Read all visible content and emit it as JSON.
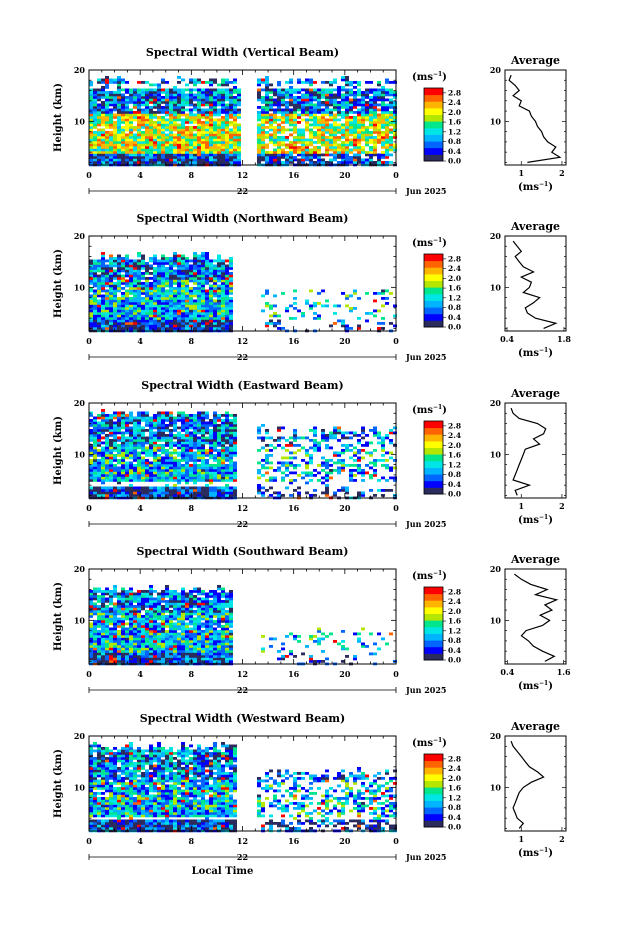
{
  "figure": {
    "xlabel": "Local Time",
    "date_label": "Jun 2025",
    "day_label": "22",
    "ylabel": "Height (km)",
    "colorbar_unit": "(ms",
    "unit_exp": "−1",
    "avg_title": "Average",
    "avg_unit": "(ms",
    "colors": {
      "scale": [
        "#2b2b5e",
        "#0000ff",
        "#0066ff",
        "#00b4ff",
        "#00e6e6",
        "#00e68c",
        "#b4e600",
        "#ffff00",
        "#ffb400",
        "#ff6400",
        "#ff0000"
      ],
      "line": "#000000",
      "background": "#ffffff"
    }
  },
  "chart_data": [
    {
      "type": "heatmap",
      "title": "Spectral Width (Vertical Beam)",
      "x_ticks": [
        "0",
        "4",
        "8",
        "12",
        "16",
        "20",
        "0"
      ],
      "xlim": [
        0,
        24
      ],
      "y_ticks": [
        "20",
        "10"
      ],
      "ylim": [
        1.5,
        20
      ],
      "data_gap_hours": [
        11.6,
        13.0
      ],
      "colorbar": {
        "ticks": [
          "2.8",
          "2.4",
          "2.0",
          "1.6",
          "1.2",
          "0.8",
          "0.4",
          "0.0"
        ],
        "range": [
          0,
          3.0
        ]
      },
      "coverage": {
        "max_height_km": 19,
        "low_gap_km": [],
        "early_cut_km": 20,
        "early_cut_hour": 0,
        "late_top_km": 19,
        "late_density": 0.85
      },
      "average": {
        "type": "line",
        "x_ticks": [
          "1",
          "2"
        ],
        "xlim": [
          0.6,
          2.1
        ],
        "height_km": [
          2,
          3,
          4,
          5,
          6,
          7,
          8,
          9,
          10,
          11,
          12,
          13,
          14,
          15,
          16,
          17,
          18,
          19
        ],
        "width_ms": [
          1.15,
          1.95,
          1.75,
          1.85,
          1.65,
          1.55,
          1.5,
          1.4,
          1.35,
          1.25,
          1.2,
          0.95,
          1.0,
          0.8,
          0.95,
          0.85,
          0.7,
          0.75
        ]
      }
    },
    {
      "type": "heatmap",
      "title": "Spectral Width (Northward Beam)",
      "x_ticks": [
        "0",
        "4",
        "8",
        "12",
        "16",
        "20",
        "0"
      ],
      "xlim": [
        0,
        24
      ],
      "y_ticks": [
        "20",
        "10"
      ],
      "ylim": [
        1.5,
        20
      ],
      "data_gap_hours": [
        11.2,
        13.4
      ],
      "colorbar": {
        "ticks": [
          "2.8",
          "2.4",
          "2.0",
          "1.6",
          "1.2",
          "0.8",
          "0.4",
          "0.0"
        ],
        "range": [
          0,
          3.0
        ]
      },
      "coverage": {
        "max_height_km": 17,
        "low_gap_km": [],
        "early_cut_km": 17,
        "early_cut_hour": 0,
        "late_top_km": 10,
        "late_density": 0.35
      },
      "average": {
        "type": "line",
        "x_ticks": [
          "0.4",
          "1.8"
        ],
        "xlim": [
          0.35,
          1.85
        ],
        "height_km": [
          2,
          3,
          4,
          5,
          6,
          7,
          8,
          9,
          10,
          11,
          12,
          13,
          14,
          15,
          16,
          17,
          18,
          19
        ],
        "width_ms": [
          1.3,
          1.6,
          1.1,
          0.9,
          0.85,
          1.05,
          1.2,
          0.8,
          0.95,
          1.0,
          0.75,
          1.05,
          0.8,
          0.7,
          0.6,
          0.75,
          0.65,
          0.55
        ]
      }
    },
    {
      "type": "heatmap",
      "title": "Spectral Width (Eastward Beam)",
      "x_ticks": [
        "0",
        "4",
        "8",
        "12",
        "16",
        "20",
        "0"
      ],
      "xlim": [
        0,
        24
      ],
      "y_ticks": [
        "20",
        "10"
      ],
      "ylim": [
        1.5,
        20
      ],
      "data_gap_hours": [
        11.5,
        13.0
      ],
      "colorbar": {
        "ticks": [
          "2.8",
          "2.4",
          "2.0",
          "1.6",
          "1.2",
          "0.8",
          "0.4",
          "0.0"
        ],
        "range": [
          0,
          3.0
        ]
      },
      "coverage": {
        "max_height_km": 19,
        "low_gap_km": [
          4.0,
          5.0
        ],
        "early_cut_km": 19,
        "early_cut_hour": 0,
        "late_top_km": 16,
        "late_density": 0.55
      },
      "average": {
        "type": "line",
        "x_ticks": [
          "1",
          "2"
        ],
        "xlim": [
          0.6,
          2.1
        ],
        "height_km": [
          2,
          3,
          4,
          5,
          6,
          7,
          8,
          9,
          10,
          11,
          12,
          13,
          14,
          15,
          16,
          17,
          18,
          19
        ],
        "width_ms": [
          0.9,
          0.85,
          1.2,
          0.8,
          0.85,
          0.9,
          0.95,
          1.0,
          1.05,
          1.1,
          1.45,
          1.3,
          1.55,
          1.6,
          1.4,
          0.95,
          0.8,
          0.75
        ]
      }
    },
    {
      "type": "heatmap",
      "title": "Spectral Width (Southward Beam)",
      "x_ticks": [
        "0",
        "4",
        "8",
        "12",
        "16",
        "20",
        "0"
      ],
      "xlim": [
        0,
        24
      ],
      "y_ticks": [
        "20",
        "10"
      ],
      "ylim": [
        1.5,
        20
      ],
      "data_gap_hours": [
        11.0,
        13.4
      ],
      "colorbar": {
        "ticks": [
          "2.8",
          "2.4",
          "2.0",
          "1.6",
          "1.2",
          "0.8",
          "0.4",
          "0.0"
        ],
        "range": [
          0,
          3.0
        ]
      },
      "coverage": {
        "max_height_km": 17,
        "low_gap_km": [],
        "early_cut_km": 17,
        "early_cut_hour": 0,
        "late_top_km": 9,
        "late_density": 0.3
      },
      "average": {
        "type": "line",
        "x_ticks": [
          "0.4",
          "1.6"
        ],
        "xlim": [
          0.35,
          1.65
        ],
        "height_km": [
          2,
          3,
          4,
          5,
          6,
          7,
          8,
          9,
          10,
          11,
          12,
          13,
          14,
          15,
          16,
          17,
          18,
          19
        ],
        "width_ms": [
          1.2,
          1.4,
          1.15,
          0.95,
          0.85,
          0.7,
          0.8,
          1.15,
          1.3,
          1.1,
          1.35,
          1.2,
          1.45,
          1.0,
          1.25,
          0.9,
          0.7,
          0.55
        ]
      }
    },
    {
      "type": "heatmap",
      "title": "Spectral Width (Westward Beam)",
      "x_ticks": [
        "0",
        "4",
        "8",
        "12",
        "16",
        "20",
        "0"
      ],
      "xlim": [
        0,
        24
      ],
      "y_ticks": [
        "20",
        "10"
      ],
      "ylim": [
        1.5,
        20
      ],
      "data_gap_hours": [
        11.4,
        13.0
      ],
      "colorbar": {
        "ticks": [
          "2.8",
          "2.4",
          "2.0",
          "1.6",
          "1.2",
          "0.8",
          "0.4",
          "0.0"
        ],
        "range": [
          0,
          3.0
        ]
      },
      "coverage": {
        "max_height_km": 19,
        "low_gap_km": [
          4.0,
          4.6
        ],
        "early_cut_km": 19,
        "early_cut_hour": 0,
        "late_top_km": 14,
        "late_density": 0.6
      },
      "average": {
        "type": "line",
        "x_ticks": [
          "1",
          "2"
        ],
        "xlim": [
          0.6,
          2.1
        ],
        "height_km": [
          2,
          3,
          4,
          5,
          6,
          7,
          8,
          9,
          10,
          11,
          12,
          13,
          14,
          15,
          16,
          17,
          18,
          19
        ],
        "width_ms": [
          0.95,
          1.05,
          0.9,
          0.85,
          0.8,
          0.85,
          0.9,
          0.95,
          1.05,
          1.25,
          1.55,
          1.4,
          1.2,
          1.1,
          1.0,
          0.9,
          0.8,
          0.75
        ]
      }
    }
  ]
}
